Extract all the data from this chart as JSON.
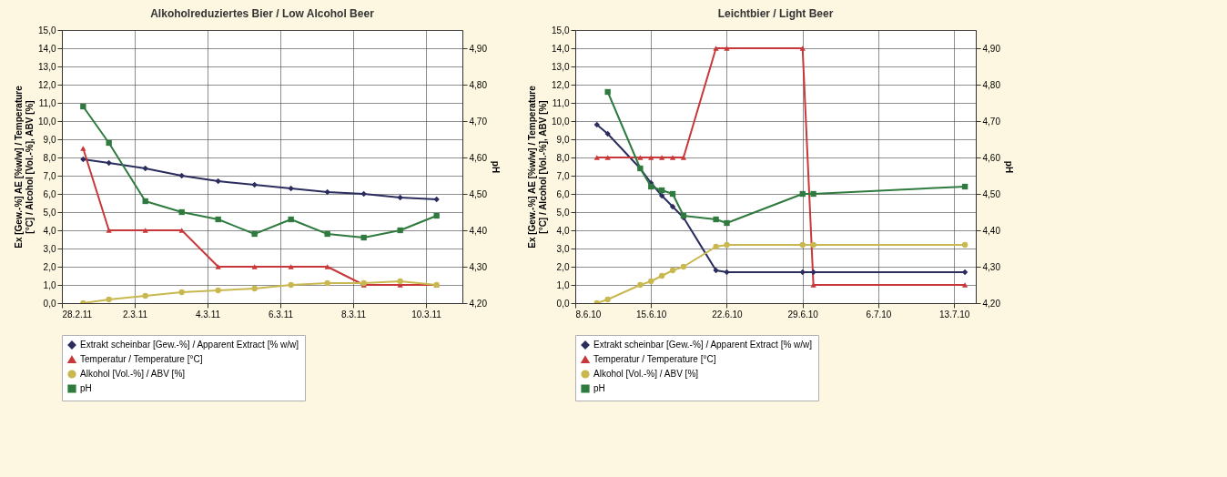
{
  "chart_data": [
    {
      "type": "line",
      "title": "Alkoholreduziertes Bier / Low Alcohol Beer",
      "ylabel": "Ex [Gew.-%] AE [%w/w] / Temperature [°C] / Alcohol [Vol.-%], ABV [%]",
      "y2label": "pH",
      "x": [
        "--02-28T14:00",
        "--03-01T07:00",
        "--03-02T07:00",
        "--03-03T07:00",
        "--03-04T07:00",
        "--03-05T07:00",
        "--03-06T07:00",
        "--03-07T07:00",
        "--03-08T07:00",
        "--03-09T07:00",
        "--03-10T07:00"
      ],
      "series": [
        {
          "name": "Extrakt scheinbar [Gew.-%] / Apparent Extract [% w/w]",
          "color": "#2b2d5e",
          "marker": "diamond",
          "values": [
            7.9,
            7.7,
            7.4,
            7.0,
            6.7,
            6.5,
            6.3,
            6.1,
            6.0,
            5.8,
            5.7
          ]
        },
        {
          "name": "Temperatur / Temperature [°C]",
          "color": "#c8383a",
          "marker": "triangle",
          "values": [
            8.5,
            4.0,
            4.0,
            4.0,
            2.0,
            2.0,
            2.0,
            2.0,
            1.0,
            1.0,
            1.0
          ]
        },
        {
          "name": "Alkohol [Vol.-%] / ABV [%]",
          "color": "#c9b850",
          "marker": "circle",
          "values": [
            0.0,
            0.2,
            0.4,
            0.6,
            0.7,
            0.8,
            1.0,
            1.1,
            1.1,
            1.2,
            1.0
          ]
        },
        {
          "name": "pH",
          "color": "#2f7a3e",
          "marker": "square",
          "axis": "y2",
          "values": [
            4.74,
            4.64,
            4.48,
            4.45,
            4.43,
            4.39,
            4.43,
            4.39,
            4.38,
            4.4,
            4.44
          ]
        }
      ],
      "xlim": [
        "--02-28",
        "--03-11"
      ],
      "xticks": [
        {
          "value": "--02-28",
          "label": "28.2.11"
        },
        {
          "value": "--03-02",
          "label": "2.3.11"
        },
        {
          "value": "--03-04",
          "label": "4.3.11"
        },
        {
          "value": "--03-06",
          "label": "6.3.11"
        },
        {
          "value": "--03-08",
          "label": "8.3.11"
        },
        {
          "value": "--03-10",
          "label": "10.3.11"
        }
      ],
      "ylim": [
        0,
        15
      ],
      "yticks": [
        {
          "value": 0,
          "label": "0,0"
        },
        {
          "value": 1,
          "label": "1,0"
        },
        {
          "value": 2,
          "label": "2,0"
        },
        {
          "value": 3,
          "label": "3,0"
        },
        {
          "value": 4,
          "label": "4,0"
        },
        {
          "value": 5,
          "label": "5,0"
        },
        {
          "value": 6,
          "label": "6,0"
        },
        {
          "value": 7,
          "label": "7,0"
        },
        {
          "value": 8,
          "label": "8,0"
        },
        {
          "value": 9,
          "label": "9,0"
        },
        {
          "value": 10,
          "label": "10,0"
        },
        {
          "value": 11,
          "label": "11,0"
        },
        {
          "value": 12,
          "label": "12,0"
        },
        {
          "value": 13,
          "label": "13,0"
        },
        {
          "value": 14,
          "label": "14,0"
        },
        {
          "value": 15,
          "label": "15,0"
        }
      ],
      "y2lim": [
        4.2,
        4.95
      ],
      "y2ticks": [
        {
          "value": 4.2,
          "label": "4,20"
        },
        {
          "value": 4.3,
          "label": "4,30"
        },
        {
          "value": 4.4,
          "label": "4,40"
        },
        {
          "value": 4.5,
          "label": "4,50"
        },
        {
          "value": 4.6,
          "label": "4,60"
        },
        {
          "value": 4.7,
          "label": "4,70"
        },
        {
          "value": 4.8,
          "label": "4,80"
        },
        {
          "value": 4.9,
          "label": "4,90"
        }
      ],
      "grid": true,
      "legend": "bottom"
    },
    {
      "type": "line",
      "title": "Leichtbier / Light Beer",
      "ylabel": "Ex [Gew.-%] AE [%w/w] / Temperature [°C] / Alcohol [Vol.-%], ABV [%]",
      "y2label": "pH",
      "x": [
        "--06-10",
        "--06-11",
        "--06-14",
        "--06-15",
        "--06-16",
        "--06-17",
        "--06-18",
        "--06-21",
        "--06-22",
        "--06-29",
        "--06-30",
        "--07-14"
      ],
      "series": [
        {
          "name": "Extrakt scheinbar [Gew.-%] / Apparent Extract [% w/w]",
          "color": "#2b2d5e",
          "marker": "diamond",
          "values": [
            9.8,
            9.3,
            7.4,
            6.6,
            5.9,
            5.3,
            4.7,
            1.8,
            1.7,
            1.7,
            1.7,
            1.7
          ]
        },
        {
          "name": "Temperatur / Temperature [°C]",
          "color": "#c8383a",
          "marker": "triangle",
          "values": [
            8.0,
            8.0,
            8.0,
            8.0,
            8.0,
            8.0,
            8.0,
            14.0,
            14.0,
            14.0,
            1.0,
            1.0
          ]
        },
        {
          "name": "Alkohol [Vol.-%] / ABV [%]",
          "color": "#c9b850",
          "marker": "circle",
          "values": [
            0.0,
            0.2,
            1.0,
            1.2,
            1.5,
            1.8,
            2.0,
            3.1,
            3.2,
            3.2,
            3.2,
            3.2
          ]
        },
        {
          "name": "pH",
          "color": "#2f7a3e",
          "marker": "square",
          "axis": "y2",
          "values": [
            null,
            4.78,
            4.57,
            4.52,
            4.51,
            4.5,
            4.44,
            4.43,
            4.42,
            4.5,
            4.5,
            4.52
          ]
        }
      ],
      "xlim": [
        "--06-08",
        "--07-15"
      ],
      "xticks": [
        {
          "value": "--06-08",
          "label": "8.6.10"
        },
        {
          "value": "--06-15",
          "label": "15.6.10"
        },
        {
          "value": "--06-22",
          "label": "22.6.10"
        },
        {
          "value": "--06-29",
          "label": "29.6.10"
        },
        {
          "value": "--07-06",
          "label": "6.7.10"
        },
        {
          "value": "--07-13",
          "label": "13.7.10"
        }
      ],
      "ylim": [
        0,
        15
      ],
      "yticks": [
        {
          "value": 0,
          "label": "0,0"
        },
        {
          "value": 1,
          "label": "1,0"
        },
        {
          "value": 2,
          "label": "2,0"
        },
        {
          "value": 3,
          "label": "3,0"
        },
        {
          "value": 4,
          "label": "4,0"
        },
        {
          "value": 5,
          "label": "5,0"
        },
        {
          "value": 6,
          "label": "6,0"
        },
        {
          "value": 7,
          "label": "7,0"
        },
        {
          "value": 8,
          "label": "8,0"
        },
        {
          "value": 9,
          "label": "9,0"
        },
        {
          "value": 10,
          "label": "10,0"
        },
        {
          "value": 11,
          "label": "11,0"
        },
        {
          "value": 12,
          "label": "12,0"
        },
        {
          "value": 13,
          "label": "13,0"
        },
        {
          "value": 14,
          "label": "14,0"
        },
        {
          "value": 15,
          "label": "15,0"
        }
      ],
      "y2lim": [
        4.2,
        4.95
      ],
      "y2ticks": [
        {
          "value": 4.2,
          "label": "4,20"
        },
        {
          "value": 4.3,
          "label": "4,30"
        },
        {
          "value": 4.4,
          "label": "4,40"
        },
        {
          "value": 4.5,
          "label": "4,50"
        },
        {
          "value": 4.6,
          "label": "4,60"
        },
        {
          "value": 4.7,
          "label": "4,70"
        },
        {
          "value": 4.8,
          "label": "4,80"
        },
        {
          "value": 4.9,
          "label": "4,90"
        }
      ],
      "grid": true,
      "legend": "bottom"
    }
  ]
}
